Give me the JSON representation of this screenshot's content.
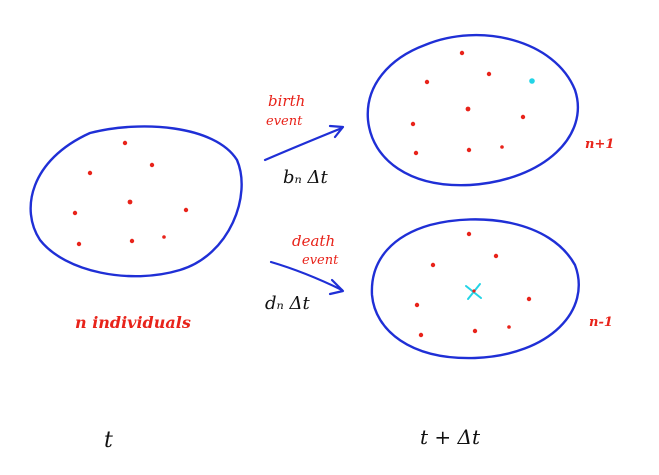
{
  "colors": {
    "boundary": "#1f2fd6",
    "individual": "#e8231a",
    "event_label": "#e8231a",
    "new_individual": "#22d4e6",
    "text": "#111111"
  },
  "left": {
    "caption": "n individuals",
    "time": "t"
  },
  "birth": {
    "label_line1": "birth",
    "label_line2": "event",
    "rate": "bₙ Δt",
    "count": "n+1"
  },
  "death": {
    "label_line1": "death",
    "label_line2": "event",
    "rate": "dₙ Δt",
    "count": "n-1"
  },
  "right": {
    "time": "t + Δt"
  }
}
